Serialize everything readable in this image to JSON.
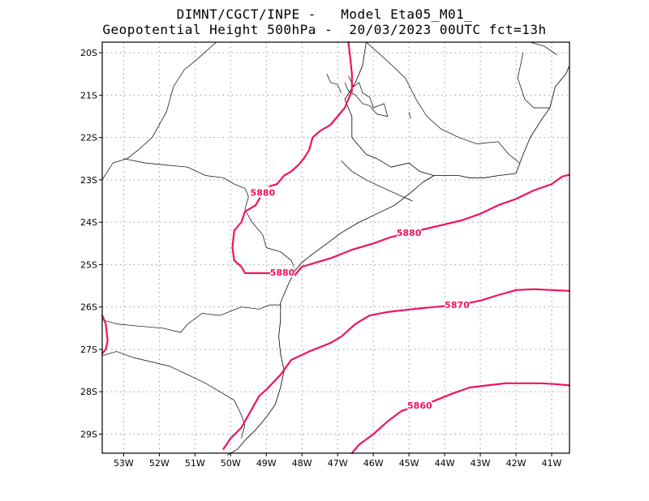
{
  "header": {
    "line1": "DIMNT/CGCT/INPE -   Model Eta05_M01_",
    "line2": "Geopotential Height 500hPa -  20/03/2023 00UTC fct=13h"
  },
  "colors": {
    "contour": "#f0145a",
    "coast": "#000000",
    "grid": "#9a9a9a"
  },
  "map": {
    "lon_range": [
      -53.6,
      -40.5
    ],
    "lat_range": [
      -29.45,
      -19.75
    ],
    "lon_ticks": [
      {
        "value": -53,
        "label": "53W"
      },
      {
        "value": -52,
        "label": "52W"
      },
      {
        "value": -51,
        "label": "51W"
      },
      {
        "value": -50,
        "label": "50W"
      },
      {
        "value": -49,
        "label": "49W"
      },
      {
        "value": -48,
        "label": "48W"
      },
      {
        "value": -47,
        "label": "47W"
      },
      {
        "value": -46,
        "label": "46W"
      },
      {
        "value": -45,
        "label": "45W"
      },
      {
        "value": -44,
        "label": "44W"
      },
      {
        "value": -43,
        "label": "43W"
      },
      {
        "value": -42,
        "label": "42W"
      },
      {
        "value": -41,
        "label": "41W"
      }
    ],
    "lat_ticks": [
      {
        "value": -20,
        "label": "20S"
      },
      {
        "value": -21,
        "label": "21S"
      },
      {
        "value": -22,
        "label": "22S"
      },
      {
        "value": -23,
        "label": "23S"
      },
      {
        "value": -24,
        "label": "24S"
      },
      {
        "value": -25,
        "label": "25S"
      },
      {
        "value": -26,
        "label": "26S"
      },
      {
        "value": -27,
        "label": "27S"
      },
      {
        "value": -28,
        "label": "28S"
      },
      {
        "value": -29,
        "label": "29S"
      }
    ]
  },
  "contours": [
    {
      "value": 5880,
      "points": [
        [
          -46.7,
          -19.75
        ],
        [
          -46.65,
          -20.1
        ],
        [
          -46.6,
          -20.5
        ],
        [
          -46.6,
          -20.9
        ],
        [
          -46.8,
          -21.3
        ],
        [
          -47.0,
          -21.5
        ],
        [
          -47.2,
          -21.7
        ],
        [
          -47.5,
          -21.85
        ],
        [
          -47.7,
          -22.0
        ],
        [
          -47.8,
          -22.3
        ],
        [
          -47.95,
          -22.5
        ],
        [
          -48.1,
          -22.65
        ],
        [
          -48.3,
          -22.8
        ],
        [
          -48.5,
          -22.9
        ],
        [
          -48.7,
          -23.1
        ],
        [
          -48.9,
          -23.15
        ],
        [
          -49.1,
          -23.3
        ],
        [
          -49.3,
          -23.6
        ],
        [
          -49.6,
          -23.75
        ],
        [
          -49.7,
          -24.0
        ],
        [
          -49.9,
          -24.2
        ],
        [
          -49.95,
          -24.6
        ],
        [
          -49.9,
          -24.9
        ],
        [
          -49.7,
          -25.05
        ],
        [
          -49.6,
          -25.2
        ],
        [
          -49.2,
          -25.2
        ],
        [
          -48.8,
          -25.2
        ],
        [
          -48.5,
          -25.25
        ],
        [
          -48.2,
          -25.25
        ],
        [
          -48.0,
          -25.05
        ],
        [
          -47.6,
          -24.95
        ],
        [
          -47.2,
          -24.85
        ],
        [
          -46.6,
          -24.65
        ],
        [
          -46.0,
          -24.5
        ],
        [
          -45.5,
          -24.35
        ],
        [
          -45.0,
          -24.25
        ],
        [
          -44.5,
          -24.15
        ],
        [
          -44.0,
          -24.05
        ],
        [
          -43.5,
          -23.95
        ],
        [
          -43.0,
          -23.8
        ],
        [
          -42.5,
          -23.6
        ],
        [
          -42.0,
          -23.45
        ],
        [
          -41.5,
          -23.25
        ],
        [
          -41.0,
          -23.1
        ],
        [
          -40.7,
          -22.92
        ],
        [
          -40.5,
          -22.88
        ]
      ],
      "labels": [
        [
          -49.1,
          -23.3
        ],
        [
          -48.55,
          -25.18
        ],
        [
          -45.0,
          -24.25
        ]
      ]
    },
    {
      "value": 5880,
      "points": [
        [
          -53.6,
          -26.2
        ],
        [
          -53.5,
          -26.4
        ],
        [
          -53.45,
          -26.8
        ],
        [
          -53.5,
          -27.0
        ],
        [
          -53.6,
          -27.1
        ]
      ],
      "labels": []
    },
    {
      "value": 5870,
      "points": [
        [
          -50.2,
          -29.35
        ],
        [
          -50.0,
          -29.1
        ],
        [
          -49.7,
          -28.85
        ],
        [
          -49.4,
          -28.4
        ],
        [
          -49.2,
          -28.1
        ],
        [
          -49.0,
          -27.95
        ],
        [
          -48.6,
          -27.6
        ],
        [
          -48.3,
          -27.25
        ],
        [
          -47.8,
          -27.05
        ],
        [
          -47.2,
          -26.85
        ],
        [
          -46.9,
          -26.7
        ],
        [
          -46.5,
          -26.4
        ],
        [
          -46.1,
          -26.2
        ],
        [
          -45.6,
          -26.12
        ],
        [
          -45.0,
          -26.06
        ],
        [
          -44.3,
          -26.0
        ],
        [
          -43.6,
          -25.95
        ],
        [
          -43.0,
          -25.85
        ],
        [
          -42.5,
          -25.72
        ],
        [
          -42.0,
          -25.6
        ],
        [
          -41.5,
          -25.58
        ],
        [
          -41.0,
          -25.6
        ],
        [
          -40.5,
          -25.62
        ]
      ],
      "labels": [
        [
          -43.65,
          -25.95
        ]
      ]
    },
    {
      "value": 5860,
      "points": [
        [
          -46.6,
          -29.45
        ],
        [
          -46.4,
          -29.25
        ],
        [
          -46.0,
          -29.0
        ],
        [
          -45.6,
          -28.7
        ],
        [
          -45.2,
          -28.45
        ],
        [
          -44.8,
          -28.35
        ],
        [
          -44.3,
          -28.22
        ],
        [
          -43.8,
          -28.05
        ],
        [
          -43.3,
          -27.9
        ],
        [
          -42.8,
          -27.85
        ],
        [
          -42.3,
          -27.8
        ],
        [
          -41.8,
          -27.8
        ],
        [
          -41.3,
          -27.8
        ],
        [
          -40.9,
          -27.82
        ],
        [
          -40.5,
          -27.85
        ]
      ],
      "labels": [
        [
          -44.7,
          -28.32
        ]
      ]
    }
  ],
  "coastline": [
    [
      -46.2,
      -19.75
    ],
    [
      -46.3,
      -20.3
    ],
    [
      -46.5,
      -20.7
    ],
    [
      -46.8,
      -21.1
    ],
    [
      -46.6,
      -21.5
    ],
    [
      -46.6,
      -22.0
    ],
    [
      -46.2,
      -22.4
    ],
    [
      -45.9,
      -22.5
    ],
    [
      -45.5,
      -22.7
    ],
    [
      -45.0,
      -22.6
    ],
    [
      -44.7,
      -22.8
    ],
    [
      -44.3,
      -22.9
    ],
    [
      -44.0,
      -22.9
    ],
    [
      -43.6,
      -22.9
    ],
    [
      -43.3,
      -22.95
    ],
    [
      -42.9,
      -22.95
    ],
    [
      -42.5,
      -22.9
    ],
    [
      -42.0,
      -22.85
    ],
    [
      -41.8,
      -22.4
    ],
    [
      -41.6,
      -22.0
    ],
    [
      -41.3,
      -21.6
    ],
    [
      -41.05,
      -21.3
    ],
    [
      -40.9,
      -20.8
    ],
    [
      -40.6,
      -20.5
    ],
    [
      -40.5,
      -20.3
    ]
  ],
  "coast_south": [
    [
      -44.3,
      -22.9
    ],
    [
      -44.6,
      -23.05
    ],
    [
      -44.95,
      -23.3
    ],
    [
      -45.4,
      -23.6
    ],
    [
      -45.9,
      -23.8
    ],
    [
      -46.4,
      -24.0
    ],
    [
      -46.9,
      -24.25
    ],
    [
      -47.3,
      -24.5
    ],
    [
      -47.7,
      -24.75
    ],
    [
      -48.0,
      -24.95
    ],
    [
      -48.2,
      -25.15
    ],
    [
      -48.4,
      -25.5
    ],
    [
      -48.6,
      -25.9
    ],
    [
      -48.6,
      -26.3
    ],
    [
      -48.65,
      -26.7
    ],
    [
      -48.6,
      -27.1
    ],
    [
      -48.5,
      -27.5
    ],
    [
      -48.6,
      -27.9
    ],
    [
      -48.75,
      -28.3
    ],
    [
      -49.0,
      -28.6
    ],
    [
      -49.3,
      -28.9
    ],
    [
      -49.6,
      -29.15
    ],
    [
      -49.8,
      -29.35
    ],
    [
      -50.1,
      -29.5
    ]
  ],
  "borders": [
    [
      [
        -53.6,
        -23.0
      ],
      [
        -53.3,
        -22.6
      ],
      [
        -52.9,
        -22.5
      ],
      [
        -52.6,
        -22.3
      ],
      [
        -52.2,
        -22.0
      ],
      [
        -51.8,
        -21.4
      ],
      [
        -51.6,
        -20.8
      ],
      [
        -51.3,
        -20.4
      ],
      [
        -51.0,
        -20.2
      ],
      [
        -50.6,
        -19.9
      ],
      [
        -50.4,
        -19.75
      ]
    ],
    [
      [
        -53.0,
        -22.5
      ],
      [
        -52.4,
        -22.6
      ],
      [
        -51.8,
        -22.65
      ],
      [
        -51.2,
        -22.7
      ],
      [
        -50.7,
        -22.9
      ],
      [
        -50.2,
        -22.95
      ],
      [
        -49.9,
        -23.1
      ],
      [
        -49.6,
        -23.2
      ],
      [
        -49.5,
        -23.4
      ],
      [
        -49.6,
        -23.7
      ],
      [
        -49.4,
        -24.0
      ],
      [
        -49.1,
        -24.3
      ],
      [
        -49.0,
        -24.6
      ],
      [
        -48.6,
        -24.7
      ],
      [
        -48.3,
        -24.9
      ],
      [
        -48.2,
        -25.1
      ]
    ],
    [
      [
        -53.6,
        -26.3
      ],
      [
        -53.2,
        -26.4
      ],
      [
        -52.6,
        -26.45
      ],
      [
        -51.9,
        -26.5
      ],
      [
        -51.4,
        -26.6
      ],
      [
        -51.2,
        -26.4
      ],
      [
        -50.8,
        -26.15
      ],
      [
        -50.3,
        -26.2
      ],
      [
        -49.7,
        -26.0
      ],
      [
        -49.2,
        -26.05
      ],
      [
        -48.9,
        -25.95
      ],
      [
        -48.6,
        -25.95
      ]
    ],
    [
      [
        -53.6,
        -27.15
      ],
      [
        -53.2,
        -27.05
      ],
      [
        -52.7,
        -27.2
      ],
      [
        -52.2,
        -27.3
      ],
      [
        -51.7,
        -27.4
      ],
      [
        -51.2,
        -27.6
      ],
      [
        -50.7,
        -27.8
      ],
      [
        -50.3,
        -28.0
      ],
      [
        -49.9,
        -28.2
      ],
      [
        -49.7,
        -28.55
      ],
      [
        -49.6,
        -28.8
      ],
      [
        -49.7,
        -29.1
      ]
    ],
    [
      [
        -46.2,
        -19.75
      ],
      [
        -45.6,
        -20.2
      ],
      [
        -45.1,
        -20.6
      ],
      [
        -44.8,
        -21.1
      ],
      [
        -44.5,
        -21.5
      ],
      [
        -44.1,
        -21.8
      ],
      [
        -43.6,
        -22.0
      ],
      [
        -43.1,
        -22.15
      ],
      [
        -42.5,
        -22.1
      ],
      [
        -42.2,
        -22.4
      ],
      [
        -41.9,
        -22.6
      ]
    ],
    [
      [
        -46.9,
        -22.55
      ],
      [
        -46.6,
        -22.8
      ],
      [
        -46.2,
        -23.0
      ],
      [
        -45.7,
        -23.2
      ],
      [
        -45.3,
        -23.35
      ],
      [
        -44.9,
        -23.5
      ]
    ],
    [
      [
        -41.8,
        -20.0
      ],
      [
        -41.95,
        -20.6
      ],
      [
        -41.75,
        -21.1
      ],
      [
        -41.5,
        -21.3
      ],
      [
        -41.05,
        -21.3
      ]
    ],
    [
      [
        -41.6,
        -19.75
      ],
      [
        -41.2,
        -19.85
      ],
      [
        -40.85,
        -20.05
      ]
    ]
  ],
  "water": [
    [
      [
        -46.7,
        -20.55
      ],
      [
        -46.55,
        -20.8
      ],
      [
        -46.4,
        -20.7
      ],
      [
        -46.3,
        -20.95
      ],
      [
        -46.1,
        -21.05
      ],
      [
        -46.0,
        -21.3
      ],
      [
        -45.7,
        -21.2
      ],
      [
        -45.6,
        -21.5
      ],
      [
        -45.9,
        -21.45
      ],
      [
        -46.1,
        -21.25
      ],
      [
        -46.3,
        -21.2
      ],
      [
        -46.5,
        -21.0
      ],
      [
        -46.7,
        -20.9
      ],
      [
        -46.8,
        -20.7
      ]
    ],
    [
      [
        -47.3,
        -20.5
      ],
      [
        -47.2,
        -20.7
      ],
      [
        -47.0,
        -20.75
      ],
      [
        -46.9,
        -20.95
      ]
    ],
    [
      [
        -45.0,
        -21.4
      ],
      [
        -44.95,
        -21.55
      ]
    ]
  ]
}
